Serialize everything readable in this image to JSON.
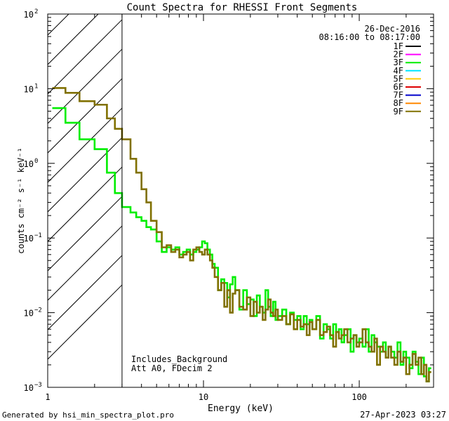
{
  "chart_data": {
    "type": "line",
    "title": "Count Spectra for RHESSI Front Segments",
    "xlabel": "Energy (keV)",
    "ylabel": "counts cm⁻² s⁻¹ keV⁻¹",
    "xscale": "log",
    "yscale": "log",
    "xlim": [
      1.0,
      300.0
    ],
    "ylim": [
      0.001,
      100.0
    ],
    "x_tick_labels": [
      {
        "value": 1,
        "label": "1"
      },
      {
        "value": 10,
        "label": "10"
      },
      {
        "value": 100,
        "label": "100"
      }
    ],
    "y_tick_labels": [
      {
        "value": 0.001,
        "mant": "10",
        "exp": "−3"
      },
      {
        "value": 0.01,
        "mant": "10",
        "exp": "−2"
      },
      {
        "value": 0.1,
        "mant": "10",
        "exp": "−1"
      },
      {
        "value": 1,
        "mant": "10",
        "exp": "0"
      },
      {
        "value": 10,
        "mant": "10",
        "exp": "1"
      },
      {
        "value": 100,
        "mant": "10",
        "exp": "2"
      }
    ],
    "date": "26-Dec-2016",
    "time_range": "08:16:00 to 08:17:00",
    "legend": [
      {
        "name": "1F",
        "color": "#000000"
      },
      {
        "name": "2F",
        "color": "#ff00ff"
      },
      {
        "name": "3F",
        "color": "#00ee00"
      },
      {
        "name": "4F",
        "color": "#00e5ff"
      },
      {
        "name": "5F",
        "color": "#ffcc00"
      },
      {
        "name": "6F",
        "color": "#dd0000"
      },
      {
        "name": "7F",
        "color": "#0000cc"
      },
      {
        "name": "8F",
        "color": "#ff8800"
      },
      {
        "name": "9F",
        "color": "#807000"
      }
    ],
    "excluded_region": {
      "xmin": 1.0,
      "xmax": 3.0
    },
    "vertical_line_x": 3.0,
    "annotations": [
      "Includes_Background",
      "Att A0, FDecim 2"
    ],
    "series": [
      {
        "name": "3F",
        "color": "#00ee00",
        "bin_edges": [
          1.07,
          1.3,
          1.6,
          2.0,
          2.4,
          2.7,
          3.0,
          3.4,
          3.7,
          4.0,
          4.3,
          4.6,
          5.0,
          5.4,
          5.8,
          6.2,
          6.6,
          7.0,
          7.4,
          7.8,
          8.2,
          8.6,
          9.0,
          9.4,
          9.8,
          10.2,
          10.6,
          11.0,
          11.4,
          11.8,
          12.4,
          13.0,
          13.6,
          14.2,
          14.8,
          15.4,
          16.0,
          17.0,
          18.0,
          19.0,
          20.0,
          21.0,
          22.0,
          23.0,
          24.0,
          25.0,
          26.0,
          27.0,
          28.0,
          29.0,
          30.0,
          32.0,
          34.0,
          36.0,
          38.0,
          40.0,
          42.0,
          44.0,
          46.0,
          48.0,
          50.0,
          53.0,
          56.0,
          59.0,
          62.0,
          65.0,
          68.0,
          71.0,
          74.0,
          77.0,
          80.0,
          84.0,
          88.0,
          92.0,
          96.0,
          100.0,
          105.0,
          110.0,
          115.0,
          120.0,
          125.0,
          130.0,
          136.0,
          142.0,
          148.0,
          154.0,
          160.0,
          168.0,
          176.0,
          184.0,
          192.0,
          200.0,
          210.0,
          220.0,
          230.0,
          240.0,
          250.0,
          260.0,
          270.0,
          280.0,
          290.0
        ],
        "values": [
          5.5,
          3.5,
          2.1,
          1.55,
          0.75,
          0.4,
          0.26,
          0.22,
          0.19,
          0.17,
          0.14,
          0.13,
          0.09,
          0.065,
          0.075,
          0.07,
          0.075,
          0.06,
          0.065,
          0.07,
          0.06,
          0.065,
          0.07,
          0.075,
          0.09,
          0.085,
          0.07,
          0.06,
          0.045,
          0.04,
          0.02,
          0.028,
          0.025,
          0.016,
          0.024,
          0.03,
          0.02,
          0.011,
          0.02,
          0.013,
          0.015,
          0.009,
          0.017,
          0.012,
          0.01,
          0.02,
          0.012,
          0.009,
          0.014,
          0.008,
          0.009,
          0.011,
          0.007,
          0.01,
          0.008,
          0.009,
          0.006,
          0.009,
          0.007,
          0.008,
          0.006,
          0.009,
          0.0045,
          0.007,
          0.006,
          0.0045,
          0.007,
          0.0055,
          0.006,
          0.004,
          0.005,
          0.006,
          0.003,
          0.005,
          0.004,
          0.0045,
          0.0035,
          0.006,
          0.003,
          0.005,
          0.004,
          0.0035,
          0.003,
          0.004,
          0.0025,
          0.0035,
          0.003,
          0.0025,
          0.004,
          0.002,
          0.003,
          0.0025,
          0.0018,
          0.003,
          0.0022,
          0.0015,
          0.0025,
          0.0014,
          0.0012,
          0.0018
        ]
      },
      {
        "name": "9F",
        "color": "#807000",
        "bin_edges": [
          1.07,
          1.3,
          1.6,
          2.0,
          2.4,
          2.7,
          3.0,
          3.4,
          3.7,
          4.0,
          4.3,
          4.6,
          5.0,
          5.4,
          5.8,
          6.2,
          6.6,
          7.0,
          7.4,
          7.8,
          8.2,
          8.6,
          9.0,
          9.4,
          9.8,
          10.2,
          10.6,
          11.0,
          11.4,
          11.8,
          12.4,
          13.0,
          13.6,
          14.2,
          14.8,
          15.4,
          16.0,
          17.0,
          18.0,
          19.0,
          20.0,
          21.0,
          22.0,
          23.0,
          24.0,
          25.0,
          26.0,
          27.0,
          28.0,
          29.0,
          30.0,
          32.0,
          34.0,
          36.0,
          38.0,
          40.0,
          42.0,
          44.0,
          46.0,
          48.0,
          50.0,
          53.0,
          56.0,
          59.0,
          62.0,
          65.0,
          68.0,
          71.0,
          74.0,
          77.0,
          80.0,
          84.0,
          88.0,
          92.0,
          96.0,
          100.0,
          105.0,
          110.0,
          115.0,
          120.0,
          125.0,
          130.0,
          136.0,
          142.0,
          148.0,
          154.0,
          160.0,
          168.0,
          176.0,
          184.0,
          192.0,
          200.0,
          210.0,
          220.0,
          230.0,
          240.0,
          250.0,
          260.0,
          270.0,
          280.0,
          290.0
        ],
        "values": [
          10.2,
          8.8,
          6.8,
          6.1,
          4.0,
          2.9,
          2.1,
          1.15,
          0.75,
          0.45,
          0.3,
          0.17,
          0.12,
          0.075,
          0.08,
          0.065,
          0.07,
          0.055,
          0.06,
          0.065,
          0.05,
          0.07,
          0.075,
          0.065,
          0.06,
          0.07,
          0.06,
          0.05,
          0.04,
          0.03,
          0.02,
          0.025,
          0.012,
          0.02,
          0.01,
          0.018,
          0.02,
          0.012,
          0.011,
          0.016,
          0.009,
          0.014,
          0.01,
          0.012,
          0.008,
          0.011,
          0.015,
          0.01,
          0.009,
          0.011,
          0.008,
          0.009,
          0.007,
          0.0095,
          0.006,
          0.008,
          0.0065,
          0.007,
          0.005,
          0.0075,
          0.006,
          0.008,
          0.005,
          0.0055,
          0.0065,
          0.005,
          0.0035,
          0.0055,
          0.0045,
          0.005,
          0.006,
          0.004,
          0.0045,
          0.005,
          0.0035,
          0.004,
          0.006,
          0.004,
          0.0035,
          0.003,
          0.0045,
          0.002,
          0.0035,
          0.003,
          0.0025,
          0.0035,
          0.0025,
          0.002,
          0.003,
          0.0022,
          0.0025,
          0.0015,
          0.002,
          0.0028,
          0.002,
          0.0025,
          0.0015,
          0.002,
          0.0012,
          0.0016
        ]
      }
    ]
  },
  "footer": {
    "generated_by": "Generated by hsi_min_spectra_plot.pro",
    "timestamp": "27-Apr-2023 03:27"
  }
}
